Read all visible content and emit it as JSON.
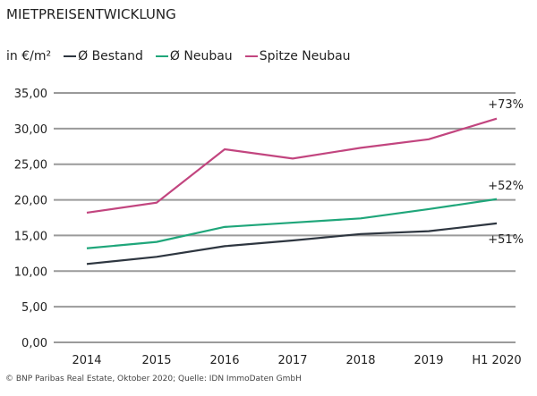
{
  "chart_data": {
    "type": "line",
    "title": "MIETPREISENTWICKLUNG",
    "ylabel": "in €/m²",
    "categories": [
      "2014",
      "2015",
      "2016",
      "2017",
      "2018",
      "2019",
      "H1 2020"
    ],
    "ylim": [
      0,
      35
    ],
    "yticks": [
      "0,00",
      "5,00",
      "10,00",
      "15,00",
      "20,00",
      "25,00",
      "30,00",
      "35,00"
    ],
    "grid": true,
    "legend_position": "top-left",
    "series": [
      {
        "name": "Ø Bestand",
        "color": "#2e3640",
        "values": [
          11.0,
          12.0,
          13.5,
          14.3,
          15.2,
          15.6,
          16.7
        ],
        "annotation": "+51%"
      },
      {
        "name": "Ø Neubau",
        "color": "#1fa67a",
        "values": [
          13.2,
          14.1,
          16.2,
          16.8,
          17.4,
          18.7,
          20.1
        ],
        "annotation": "+52%"
      },
      {
        "name": "Spitze Neubau",
        "color": "#c2457f",
        "values": [
          18.2,
          19.6,
          27.1,
          25.8,
          27.3,
          28.5,
          31.4
        ],
        "annotation": "+73%"
      }
    ]
  },
  "footer": "© BNP Paribas Real Estate, Oktober 2020; Quelle: IDN ImmoDaten GmbH"
}
